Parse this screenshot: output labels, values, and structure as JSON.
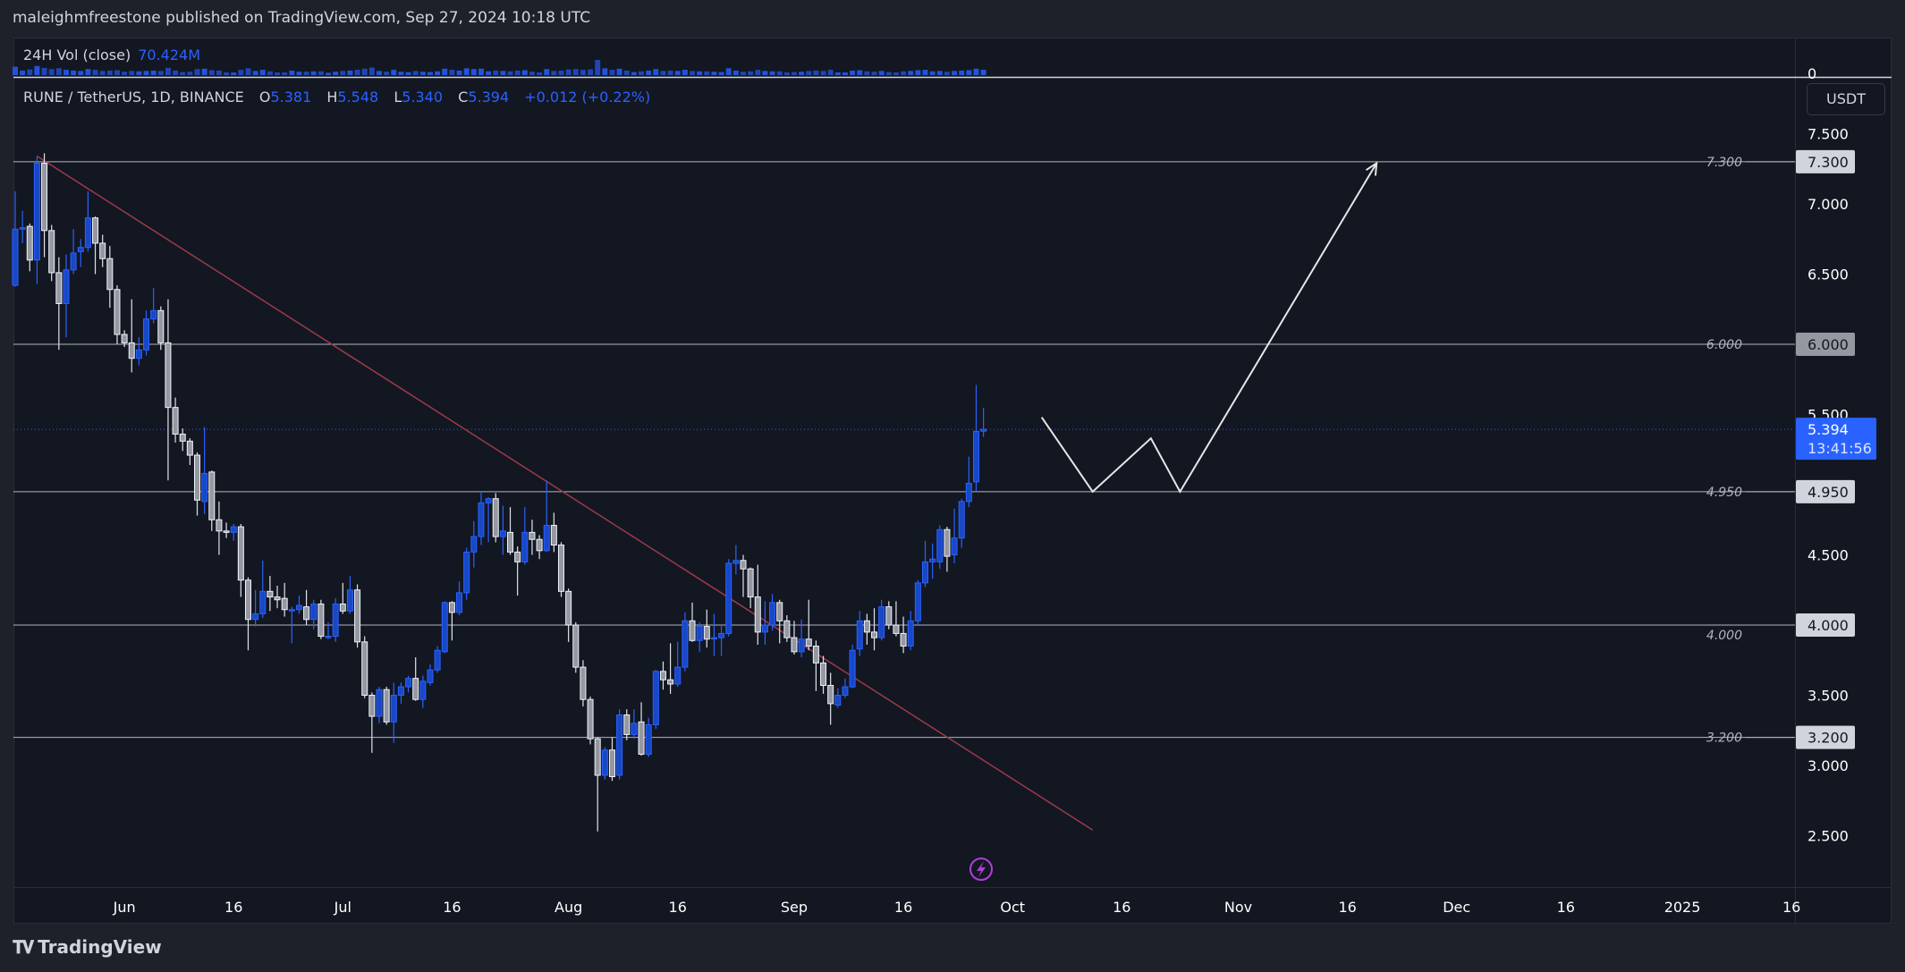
{
  "header": {
    "publisher_line": "maleighmfreestone published on TradingView.com, Sep 27, 2024 10:18 UTC"
  },
  "volume_legend": {
    "label": "24H Vol (close)",
    "value": "70.424M",
    "axis_zero": "0"
  },
  "symbol_legend": {
    "title": "RUNE / TetherUS, 1D, BINANCE",
    "o_label": "O",
    "o": "5.381",
    "h_label": "H",
    "h": "5.548",
    "l_label": "L",
    "l": "5.340",
    "c_label": "C",
    "c": "5.394",
    "change": "+0.012 (+0.22%)"
  },
  "currency_button": "USDT",
  "colors": {
    "up": "#2962ff",
    "down": "#9598a1",
    "trendline": "#9c3b4b",
    "levels": "#b2b5be",
    "price_tag": "#2962ff",
    "alert_icon": "#9c27b0"
  },
  "price_axis": {
    "ticks": [
      {
        "v": 7.5,
        "label": "7.500"
      },
      {
        "v": 7.0,
        "label": "7.000"
      },
      {
        "v": 6.5,
        "label": "6.500"
      },
      {
        "v": 5.5,
        "label": "5.500"
      },
      {
        "v": 4.5,
        "label": "4.500"
      },
      {
        "v": 3.5,
        "label": "3.500"
      },
      {
        "v": 3.0,
        "label": "3.000"
      },
      {
        "v": 2.5,
        "label": "2.500"
      }
    ],
    "current_price": {
      "value": 5.394,
      "label": "5.394",
      "countdown": "13:41:56"
    }
  },
  "levels": [
    {
      "v": 7.3,
      "label": "7.300",
      "tag": "7.300",
      "tag_style": "light"
    },
    {
      "v": 6.0,
      "label": "6.000",
      "tag": "6.000",
      "tag_style": "gray"
    },
    {
      "v": 4.95,
      "label": "4.950",
      "tag": "4.950",
      "tag_style": "light"
    },
    {
      "v": 4.0,
      "label": "4.000",
      "tag": "4.000",
      "tag_style": "light"
    },
    {
      "v": 3.2,
      "label": "3.200",
      "tag": "3.200",
      "tag_style": "light"
    }
  ],
  "time_axis": [
    {
      "date": "2024-06-01",
      "label": "Jun"
    },
    {
      "date": "2024-06-16",
      "label": "16"
    },
    {
      "date": "2024-07-01",
      "label": "Jul"
    },
    {
      "date": "2024-07-16",
      "label": "16"
    },
    {
      "date": "2024-08-01",
      "label": "Aug"
    },
    {
      "date": "2024-08-16",
      "label": "16"
    },
    {
      "date": "2024-09-01",
      "label": "Sep"
    },
    {
      "date": "2024-09-16",
      "label": "16"
    },
    {
      "date": "2024-10-01",
      "label": "Oct"
    },
    {
      "date": "2024-10-16",
      "label": "16"
    },
    {
      "date": "2024-11-01",
      "label": "Nov"
    },
    {
      "date": "2024-11-16",
      "label": "16"
    },
    {
      "date": "2024-12-01",
      "label": "Dec"
    },
    {
      "date": "2024-12-16",
      "label": "16"
    },
    {
      "date": "2025-01-01",
      "label": "2025"
    },
    {
      "date": "2025-01-16",
      "label": "16"
    }
  ],
  "drawings": {
    "trendline": [
      [
        "2024-05-20",
        7.34
      ],
      [
        "2024-10-12",
        2.54
      ]
    ],
    "projection_path": [
      [
        "2024-10-05",
        5.48
      ],
      [
        "2024-10-12",
        4.95
      ],
      [
        "2024-10-20",
        5.33
      ],
      [
        "2024-10-24",
        4.95
      ],
      [
        "2024-11-20",
        7.29
      ]
    ]
  },
  "footer": {
    "brand": "TradingView",
    "logo_text": "TV"
  },
  "chart_data": {
    "type": "candlestick",
    "title": "RUNE / TetherUS, 1D, BINANCE",
    "ylim": [
      2.2,
      7.9
    ],
    "y_scale": "linear",
    "grid": false,
    "columns": [
      "date",
      "open",
      "high",
      "low",
      "close",
      "volume_M"
    ],
    "candles": [
      [
        "2024-05-17",
        6.42,
        7.09,
        6.41,
        6.82,
        110
      ],
      [
        "2024-05-18",
        6.82,
        6.95,
        6.72,
        6.83,
        60
      ],
      [
        "2024-05-19",
        6.84,
        6.86,
        6.52,
        6.6,
        75
      ],
      [
        "2024-05-20",
        6.6,
        7.34,
        6.43,
        7.29,
        120
      ],
      [
        "2024-05-21",
        7.29,
        7.36,
        6.62,
        6.81,
        95
      ],
      [
        "2024-05-22",
        6.81,
        6.85,
        6.45,
        6.51,
        80
      ],
      [
        "2024-05-23",
        6.51,
        6.62,
        5.96,
        6.29,
        90
      ],
      [
        "2024-05-24",
        6.29,
        6.64,
        6.05,
        6.53,
        70
      ],
      [
        "2024-05-25",
        6.53,
        6.82,
        6.5,
        6.65,
        60
      ],
      [
        "2024-05-26",
        6.66,
        6.75,
        6.55,
        6.69,
        55
      ],
      [
        "2024-05-27",
        6.69,
        7.09,
        6.66,
        6.9,
        80
      ],
      [
        "2024-05-28",
        6.9,
        6.91,
        6.5,
        6.72,
        70
      ],
      [
        "2024-05-29",
        6.72,
        6.78,
        6.55,
        6.61,
        55
      ],
      [
        "2024-05-30",
        6.61,
        6.7,
        6.26,
        6.39,
        60
      ],
      [
        "2024-05-31",
        6.39,
        6.42,
        6.0,
        6.07,
        65
      ],
      [
        "2024-06-01",
        6.07,
        6.1,
        5.98,
        6.01,
        45
      ],
      [
        "2024-06-02",
        6.01,
        6.32,
        5.8,
        5.9,
        55
      ],
      [
        "2024-06-03",
        5.9,
        6.05,
        5.85,
        5.96,
        50
      ],
      [
        "2024-06-04",
        5.96,
        6.24,
        5.92,
        6.18,
        55
      ],
      [
        "2024-06-05",
        6.18,
        6.4,
        6.15,
        6.24,
        60
      ],
      [
        "2024-06-06",
        6.24,
        6.27,
        5.96,
        6.01,
        55
      ],
      [
        "2024-06-07",
        6.01,
        6.32,
        5.03,
        5.55,
        95
      ],
      [
        "2024-06-08",
        5.55,
        5.62,
        5.3,
        5.36,
        60
      ],
      [
        "2024-06-09",
        5.36,
        5.4,
        5.24,
        5.31,
        40
      ],
      [
        "2024-06-10",
        5.31,
        5.33,
        5.14,
        5.21,
        45
      ],
      [
        "2024-06-11",
        5.21,
        5.23,
        4.78,
        4.89,
        80
      ],
      [
        "2024-06-12",
        4.88,
        5.41,
        4.79,
        5.08,
        85
      ],
      [
        "2024-06-13",
        5.09,
        5.1,
        4.67,
        4.75,
        65
      ],
      [
        "2024-06-14",
        4.75,
        4.88,
        4.5,
        4.67,
        60
      ],
      [
        "2024-06-15",
        4.67,
        4.73,
        4.62,
        4.66,
        35
      ],
      [
        "2024-06-16",
        4.66,
        4.72,
        4.6,
        4.7,
        35
      ],
      [
        "2024-06-17",
        4.7,
        4.72,
        4.2,
        4.32,
        70
      ],
      [
        "2024-06-18",
        4.32,
        4.34,
        3.82,
        4.04,
        90
      ],
      [
        "2024-06-19",
        4.04,
        4.25,
        3.99,
        4.08,
        55
      ],
      [
        "2024-06-20",
        4.08,
        4.46,
        4.05,
        4.24,
        70
      ],
      [
        "2024-06-21",
        4.24,
        4.35,
        4.1,
        4.2,
        50
      ],
      [
        "2024-06-22",
        4.2,
        4.28,
        4.12,
        4.18,
        35
      ],
      [
        "2024-06-23",
        4.19,
        4.3,
        4.06,
        4.11,
        35
      ],
      [
        "2024-06-24",
        4.11,
        4.13,
        3.87,
        4.11,
        60
      ],
      [
        "2024-06-25",
        4.11,
        4.21,
        4.08,
        4.14,
        45
      ],
      [
        "2024-06-26",
        4.13,
        4.25,
        4.0,
        4.04,
        45
      ],
      [
        "2024-06-27",
        4.04,
        4.18,
        3.97,
        4.15,
        50
      ],
      [
        "2024-06-28",
        4.15,
        4.18,
        3.9,
        3.92,
        50
      ],
      [
        "2024-06-29",
        3.92,
        4.02,
        3.9,
        3.92,
        30
      ],
      [
        "2024-06-30",
        3.92,
        4.19,
        3.88,
        4.15,
        45
      ],
      [
        "2024-07-01",
        4.15,
        4.3,
        4.08,
        4.1,
        55
      ],
      [
        "2024-07-02",
        4.1,
        4.35,
        4.08,
        4.25,
        60
      ],
      [
        "2024-07-03",
        4.25,
        4.29,
        3.84,
        3.88,
        70
      ],
      [
        "2024-07-04",
        3.88,
        3.92,
        3.48,
        3.5,
        85
      ],
      [
        "2024-07-05",
        3.5,
        3.52,
        3.09,
        3.35,
        100
      ],
      [
        "2024-07-06",
        3.35,
        3.56,
        3.3,
        3.54,
        55
      ],
      [
        "2024-07-07",
        3.54,
        3.56,
        3.29,
        3.31,
        45
      ],
      [
        "2024-07-08",
        3.31,
        3.59,
        3.16,
        3.5,
        70
      ],
      [
        "2024-07-09",
        3.5,
        3.59,
        3.44,
        3.56,
        45
      ],
      [
        "2024-07-10",
        3.56,
        3.64,
        3.52,
        3.62,
        40
      ],
      [
        "2024-07-11",
        3.62,
        3.77,
        3.46,
        3.47,
        55
      ],
      [
        "2024-07-12",
        3.47,
        3.64,
        3.41,
        3.6,
        45
      ],
      [
        "2024-07-13",
        3.59,
        3.72,
        3.57,
        3.68,
        40
      ],
      [
        "2024-07-14",
        3.68,
        3.85,
        3.66,
        3.82,
        50
      ],
      [
        "2024-07-15",
        3.81,
        4.17,
        3.8,
        4.16,
        85
      ],
      [
        "2024-07-16",
        4.16,
        4.17,
        3.89,
        4.09,
        70
      ],
      [
        "2024-07-17",
        4.09,
        4.31,
        4.07,
        4.23,
        60
      ],
      [
        "2024-07-18",
        4.23,
        4.55,
        4.18,
        4.52,
        90
      ],
      [
        "2024-07-19",
        4.52,
        4.74,
        4.41,
        4.63,
        80
      ],
      [
        "2024-07-20",
        4.63,
        4.95,
        4.57,
        4.87,
        85
      ],
      [
        "2024-07-21",
        4.87,
        4.91,
        4.59,
        4.9,
        50
      ],
      [
        "2024-07-22",
        4.9,
        4.94,
        4.59,
        4.63,
        60
      ],
      [
        "2024-07-23",
        4.63,
        4.85,
        4.5,
        4.67,
        55
      ],
      [
        "2024-07-24",
        4.66,
        4.84,
        4.5,
        4.52,
        50
      ],
      [
        "2024-07-25",
        4.52,
        4.56,
        4.21,
        4.45,
        60
      ],
      [
        "2024-07-26",
        4.45,
        4.84,
        4.43,
        4.66,
        65
      ],
      [
        "2024-07-27",
        4.66,
        4.75,
        4.5,
        4.61,
        45
      ],
      [
        "2024-07-28",
        4.61,
        4.64,
        4.47,
        4.53,
        35
      ],
      [
        "2024-07-29",
        4.53,
        5.03,
        4.52,
        4.71,
        80
      ],
      [
        "2024-07-30",
        4.71,
        4.8,
        4.52,
        4.57,
        55
      ],
      [
        "2024-07-31",
        4.57,
        4.59,
        4.2,
        4.24,
        60
      ],
      [
        "2024-08-01",
        4.24,
        4.26,
        3.88,
        4.0,
        75
      ],
      [
        "2024-08-02",
        4.0,
        4.02,
        3.66,
        3.7,
        80
      ],
      [
        "2024-08-03",
        3.7,
        3.75,
        3.42,
        3.47,
        70
      ],
      [
        "2024-08-04",
        3.47,
        3.49,
        3.15,
        3.19,
        75
      ],
      [
        "2024-08-05",
        3.19,
        3.2,
        2.53,
        2.93,
        200
      ],
      [
        "2024-08-06",
        2.93,
        3.13,
        2.9,
        3.11,
        90
      ],
      [
        "2024-08-07",
        3.11,
        3.2,
        2.89,
        2.92,
        70
      ],
      [
        "2024-08-08",
        2.93,
        3.4,
        2.9,
        3.36,
        85
      ],
      [
        "2024-08-09",
        3.36,
        3.4,
        3.18,
        3.22,
        60
      ],
      [
        "2024-08-10",
        3.22,
        3.4,
        3.19,
        3.3,
        40
      ],
      [
        "2024-08-11",
        3.31,
        3.45,
        3.07,
        3.08,
        50
      ],
      [
        "2024-08-12",
        3.08,
        3.34,
        3.06,
        3.29,
        60
      ],
      [
        "2024-08-13",
        3.29,
        3.68,
        3.26,
        3.67,
        80
      ],
      [
        "2024-08-14",
        3.67,
        3.74,
        3.54,
        3.61,
        55
      ],
      [
        "2024-08-15",
        3.61,
        3.87,
        3.51,
        3.58,
        60
      ],
      [
        "2024-08-16",
        3.58,
        3.88,
        3.56,
        3.7,
        55
      ],
      [
        "2024-08-17",
        3.7,
        4.09,
        3.67,
        4.03,
        70
      ],
      [
        "2024-08-18",
        4.03,
        4.16,
        3.88,
        3.89,
        55
      ],
      [
        "2024-08-19",
        3.89,
        4.02,
        3.81,
        3.99,
        50
      ],
      [
        "2024-08-20",
        3.99,
        4.11,
        3.84,
        3.9,
        50
      ],
      [
        "2024-08-21",
        3.91,
        4.08,
        3.78,
        3.91,
        45
      ],
      [
        "2024-08-22",
        3.91,
        4.0,
        3.78,
        3.94,
        40
      ],
      [
        "2024-08-23",
        3.94,
        4.47,
        3.92,
        4.44,
        90
      ],
      [
        "2024-08-24",
        4.44,
        4.57,
        4.36,
        4.46,
        60
      ],
      [
        "2024-08-25",
        4.46,
        4.5,
        4.2,
        4.4,
        45
      ],
      [
        "2024-08-26",
        4.4,
        4.41,
        4.12,
        4.2,
        50
      ],
      [
        "2024-08-27",
        4.2,
        4.43,
        3.86,
        3.95,
        70
      ],
      [
        "2024-08-28",
        3.95,
        4.17,
        3.86,
        4.0,
        55
      ],
      [
        "2024-08-29",
        4.0,
        4.22,
        3.96,
        4.16,
        50
      ],
      [
        "2024-08-30",
        4.16,
        4.18,
        3.87,
        4.03,
        50
      ],
      [
        "2024-08-31",
        4.03,
        4.07,
        3.88,
        3.91,
        35
      ],
      [
        "2024-09-01",
        3.91,
        4.03,
        3.79,
        3.81,
        40
      ],
      [
        "2024-09-02",
        3.81,
        4.04,
        3.77,
        3.9,
        45
      ],
      [
        "2024-09-03",
        3.9,
        4.18,
        3.82,
        3.85,
        55
      ],
      [
        "2024-09-04",
        3.85,
        3.89,
        3.53,
        3.73,
        60
      ],
      [
        "2024-09-05",
        3.73,
        3.78,
        3.51,
        3.57,
        55
      ],
      [
        "2024-09-06",
        3.57,
        3.66,
        3.29,
        3.44,
        70
      ],
      [
        "2024-09-07",
        3.43,
        3.55,
        3.41,
        3.5,
        35
      ],
      [
        "2024-09-08",
        3.5,
        3.62,
        3.48,
        3.56,
        35
      ],
      [
        "2024-09-09",
        3.56,
        3.86,
        3.55,
        3.82,
        60
      ],
      [
        "2024-09-10",
        3.83,
        4.1,
        3.78,
        4.03,
        65
      ],
      [
        "2024-09-11",
        4.03,
        4.08,
        3.86,
        3.95,
        50
      ],
      [
        "2024-09-12",
        3.95,
        4.12,
        3.82,
        3.91,
        45
      ],
      [
        "2024-09-13",
        3.91,
        4.18,
        3.89,
        4.13,
        55
      ],
      [
        "2024-09-14",
        4.13,
        4.17,
        3.97,
        4.0,
        40
      ],
      [
        "2024-09-15",
        4.0,
        4.17,
        3.92,
        3.94,
        35
      ],
      [
        "2024-09-16",
        3.94,
        4.06,
        3.8,
        3.85,
        50
      ],
      [
        "2024-09-17",
        3.85,
        4.1,
        3.82,
        4.03,
        55
      ],
      [
        "2024-09-18",
        4.03,
        4.32,
        4.0,
        4.3,
        65
      ],
      [
        "2024-09-19",
        4.3,
        4.6,
        4.27,
        4.45,
        70
      ],
      [
        "2024-09-20",
        4.45,
        4.58,
        4.33,
        4.47,
        50
      ],
      [
        "2024-09-21",
        4.45,
        4.71,
        4.4,
        4.68,
        55
      ],
      [
        "2024-09-22",
        4.68,
        4.7,
        4.38,
        4.49,
        45
      ],
      [
        "2024-09-23",
        4.5,
        4.83,
        4.44,
        4.62,
        55
      ],
      [
        "2024-09-24",
        4.62,
        4.9,
        4.55,
        4.88,
        60
      ],
      [
        "2024-09-25",
        4.88,
        5.2,
        4.84,
        5.01,
        65
      ],
      [
        "2024-09-26",
        5.02,
        5.71,
        4.95,
        5.38,
        85
      ],
      [
        "2024-09-27",
        5.381,
        5.548,
        5.34,
        5.394,
        70.424
      ]
    ]
  }
}
